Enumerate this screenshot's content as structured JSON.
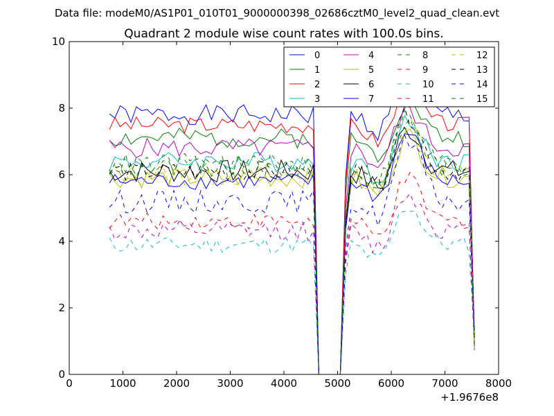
{
  "chart_data": {
    "type": "line",
    "suptitle": "Data file: modeM0/AS1P01_010T01_9000000398_02686cztM0_level2_quad_clean.evt",
    "title": "Quadrant 2 module wise count rates with 100.0s bins.",
    "xlabel": "",
    "ylabel": "",
    "x_offset_label": "+1.9676e8",
    "xlim": [
      0,
      8000
    ],
    "ylim": [
      0,
      10
    ],
    "x_ticks": [
      0,
      1000,
      2000,
      3000,
      4000,
      5000,
      6000,
      7000,
      8000
    ],
    "x_tick_labels": [
      "0",
      "1000",
      "2000",
      "3000",
      "4000",
      "5000",
      "6000",
      "7000",
      "8000"
    ],
    "y_ticks": [
      0,
      2,
      4,
      6,
      8,
      10
    ],
    "y_tick_labels": [
      "0",
      "2",
      "4",
      "6",
      "8",
      "10"
    ],
    "grid": false,
    "legend_position": "top-right",
    "segments": [
      {
        "x_start": 750,
        "x_end": 4550,
        "step": 100
      },
      {
        "x_start": 5150,
        "x_end": 7550,
        "step": 100
      }
    ],
    "gap": {
      "x": [
        4650,
        5050
      ],
      "value": 0
    },
    "series": [
      {
        "name": "0",
        "color": "#0000ff",
        "dash": "solid",
        "level": 7.8,
        "noise": 0.3,
        "peak": 1.2,
        "seed": 1
      },
      {
        "name": "1",
        "color": "#008000",
        "dash": "solid",
        "level": 7.1,
        "noise": 0.3,
        "peak": 1.2,
        "seed": 2
      },
      {
        "name": "2",
        "color": "#ff0000",
        "dash": "solid",
        "level": 7.5,
        "noise": 0.25,
        "peak": 1.0,
        "seed": 3
      },
      {
        "name": "3",
        "color": "#00bfbf",
        "dash": "solid",
        "level": 6.4,
        "noise": 0.3,
        "peak": 1.2,
        "seed": 4
      },
      {
        "name": "4",
        "color": "#bf00bf",
        "dash": "solid",
        "level": 6.8,
        "noise": 0.3,
        "peak": 1.2,
        "seed": 5
      },
      {
        "name": "5",
        "color": "#bfbf00",
        "dash": "solid",
        "level": 5.9,
        "noise": 0.3,
        "peak": 1.3,
        "seed": 6
      },
      {
        "name": "6",
        "color": "#000000",
        "dash": "solid",
        "level": 6.1,
        "noise": 0.35,
        "peak": 1.3,
        "seed": 7
      },
      {
        "name": "7",
        "color": "#0000ff",
        "dash": "solid",
        "level": 5.8,
        "noise": 0.25,
        "peak": 1.5,
        "seed": 8
      },
      {
        "name": "8",
        "color": "#008000",
        "dash": "dashed",
        "level": 6.2,
        "noise": 0.35,
        "peak": 1.4,
        "seed": 9
      },
      {
        "name": "9",
        "color": "#ff0000",
        "dash": "dashed",
        "level": 4.6,
        "noise": 0.25,
        "peak": 1.3,
        "seed": 10
      },
      {
        "name": "10",
        "color": "#00bfbf",
        "dash": "dashed",
        "level": 3.9,
        "noise": 0.25,
        "peak": 1.2,
        "seed": 11
      },
      {
        "name": "11",
        "color": "#bf00bf",
        "dash": "dashed",
        "level": 4.3,
        "noise": 0.3,
        "peak": 1.2,
        "seed": 12
      },
      {
        "name": "12",
        "color": "#bfbf00",
        "dash": "dashed",
        "level": 6.0,
        "noise": 0.35,
        "peak": 1.6,
        "seed": 13
      },
      {
        "name": "13",
        "color": "#000000",
        "dash": "dashed",
        "level": 6.1,
        "noise": 0.3,
        "peak": 1.7,
        "seed": 14
      },
      {
        "name": "14",
        "color": "#0000ff",
        "dash": "dashed",
        "level": 5.2,
        "noise": 0.35,
        "peak": 1.8,
        "seed": 15
      },
      {
        "name": "15",
        "color": "#008000",
        "dash": "dashed",
        "level": 6.3,
        "noise": 0.35,
        "peak": 1.5,
        "seed": 16
      }
    ]
  }
}
